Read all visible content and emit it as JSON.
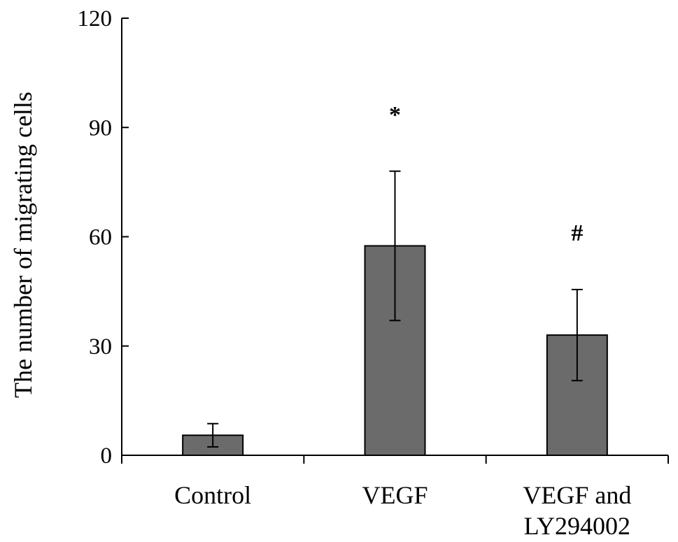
{
  "chart_data": {
    "type": "bar",
    "title": "",
    "xlabel": "",
    "ylabel": "The number of migrating cells",
    "ylim": [
      0,
      120
    ],
    "yticks": [
      "0",
      "30",
      "60",
      "90",
      "120"
    ],
    "categories": [
      "Control",
      "VEGF",
      "VEGF and LY294002"
    ],
    "category_lines": [
      [
        "Control"
      ],
      [
        "VEGF"
      ],
      [
        "VEGF and",
        "LY294002"
      ]
    ],
    "values": [
      5.5,
      57.5,
      33
    ],
    "errors": [
      3.2,
      20.5,
      12.5
    ],
    "annotations": [
      "",
      "*",
      "#"
    ],
    "grid": false,
    "legend": "none"
  },
  "colors": {
    "bar_fill": "#6b6b6b",
    "bar_stroke": "#000000",
    "axis": "#000000"
  }
}
